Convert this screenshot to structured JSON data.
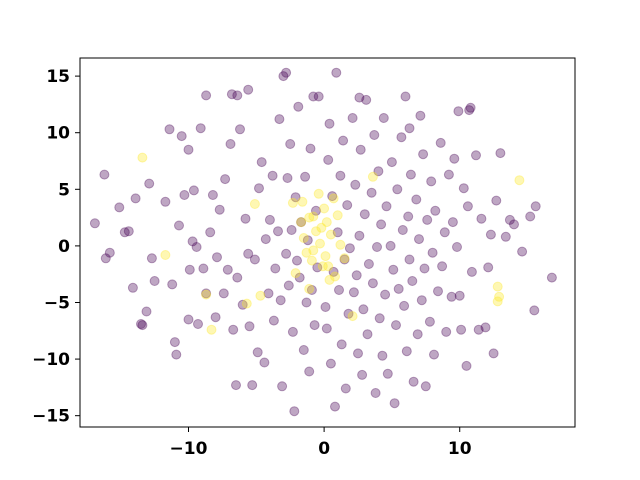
{
  "chart_data": {
    "type": "scatter",
    "title": "",
    "xlabel": "",
    "ylabel": "",
    "xlim": [
      -18,
      18.5
    ],
    "ylim": [
      -16,
      16.6
    ],
    "xticks": [
      -10,
      0,
      10
    ],
    "yticks": [
      -15,
      -10,
      -5,
      0,
      5,
      10,
      15
    ],
    "xtick_labels": [
      "−10",
      "0",
      "10"
    ],
    "ytick_labels": [
      "−15",
      "−10",
      "−5",
      "0",
      "5",
      "10",
      "15"
    ],
    "grid": false,
    "legend": "none",
    "marker_alpha": 0.35,
    "colors": {
      "class_0": "#440154",
      "class_1": "#fde725"
    },
    "series": [
      {
        "class": 0,
        "points": [
          [
            -16.2,
            6.3
          ],
          [
            -16.9,
            2.0
          ],
          [
            -16.1,
            -1.1
          ],
          [
            -15.8,
            -0.6
          ],
          [
            -15.1,
            3.4
          ],
          [
            -14.7,
            1.2
          ],
          [
            -14.4,
            1.3
          ],
          [
            -14.1,
            -3.7
          ],
          [
            -13.9,
            4.2
          ],
          [
            -13.5,
            -6.9
          ],
          [
            -13.4,
            -7.0
          ],
          [
            -13.1,
            -5.8
          ],
          [
            -12.9,
            5.5
          ],
          [
            -12.7,
            -1.1
          ],
          [
            -12.5,
            -3.1
          ],
          [
            -11.7,
            3.9
          ],
          [
            -11.4,
            10.3
          ],
          [
            -11.2,
            -3.4
          ],
          [
            -11.0,
            -8.5
          ],
          [
            -10.9,
            -9.6
          ],
          [
            -10.7,
            1.8
          ],
          [
            -10.5,
            9.7
          ],
          [
            -10.3,
            4.5
          ],
          [
            -10.0,
            8.5
          ],
          [
            -10.0,
            -6.5
          ],
          [
            -9.9,
            -2.1
          ],
          [
            -9.7,
            0.4
          ],
          [
            -9.6,
            4.9
          ],
          [
            -9.4,
            -0.1
          ],
          [
            -9.3,
            -6.9
          ],
          [
            -9.1,
            10.4
          ],
          [
            -8.9,
            -2.0
          ],
          [
            -8.7,
            -4.2
          ],
          [
            -8.4,
            1.2
          ],
          [
            -8.2,
            4.5
          ],
          [
            -8.0,
            -6.3
          ],
          [
            -7.9,
            -1.0
          ],
          [
            -7.7,
            3.2
          ],
          [
            -7.4,
            -4.2
          ],
          [
            -7.3,
            5.9
          ],
          [
            -7.1,
            -2.1
          ],
          [
            -6.9,
            9.0
          ],
          [
            -6.7,
            -7.4
          ],
          [
            -6.5,
            -12.3
          ],
          [
            -6.4,
            -2.8
          ],
          [
            -6.2,
            10.3
          ],
          [
            -6.0,
            -5.2
          ],
          [
            -5.8,
            2.4
          ],
          [
            -5.6,
            -0.7
          ],
          [
            -5.5,
            -7.1
          ],
          [
            -5.3,
            -12.3
          ],
          [
            -5.1,
            -1.2
          ],
          [
            -4.9,
            -9.4
          ],
          [
            -4.8,
            5.1
          ],
          [
            -4.6,
            7.4
          ],
          [
            -4.4,
            -10.3
          ],
          [
            -4.3,
            0.6
          ],
          [
            -4.1,
            -4.2
          ],
          [
            -4.0,
            2.3
          ],
          [
            -3.8,
            6.2
          ],
          [
            -3.7,
            -6.6
          ],
          [
            -3.6,
            -2.0
          ],
          [
            -3.4,
            1.3
          ],
          [
            -3.3,
            11.2
          ],
          [
            -3.2,
            -4.8
          ],
          [
            -3.1,
            -12.4
          ],
          [
            -3.0,
            15.0
          ],
          [
            -2.8,
            -0.7
          ],
          [
            -2.7,
            6.0
          ],
          [
            -2.6,
            -3.5
          ],
          [
            -2.5,
            9.0
          ],
          [
            -2.4,
            1.4
          ],
          [
            -2.3,
            -7.6
          ],
          [
            -2.2,
            -14.6
          ],
          [
            -2.1,
            4.3
          ],
          [
            -2.0,
            -1.3
          ],
          [
            -1.9,
            12.3
          ],
          [
            -1.8,
            -2.8
          ],
          [
            -1.7,
            2.1
          ],
          [
            -1.5,
            -9.2
          ],
          [
            -1.4,
            6.1
          ],
          [
            -1.3,
            -5.0
          ],
          [
            -1.2,
            0.5
          ],
          [
            -1.1,
            -11.1
          ],
          [
            -1.0,
            8.6
          ],
          [
            -0.9,
            -3.9
          ],
          [
            -0.8,
            13.2
          ],
          [
            -0.7,
            -7.0
          ],
          [
            -0.6,
            3.1
          ],
          [
            -0.5,
            -1.9
          ],
          [
            0.1,
            -5.4
          ],
          [
            0.2,
            -7.3
          ],
          [
            0.3,
            7.6
          ],
          [
            0.4,
            10.8
          ],
          [
            0.5,
            -10.4
          ],
          [
            0.6,
            4.4
          ],
          [
            0.7,
            -2.3
          ],
          [
            0.8,
            -14.2
          ],
          [
            0.9,
            15.3
          ],
          [
            1.0,
            1.2
          ],
          [
            1.1,
            -3.9
          ],
          [
            1.2,
            6.2
          ],
          [
            1.3,
            -8.7
          ],
          [
            1.4,
            9.3
          ],
          [
            1.5,
            -1.2
          ],
          [
            1.6,
            -12.6
          ],
          [
            1.7,
            3.6
          ],
          [
            1.8,
            -6.0
          ],
          [
            1.9,
            -0.2
          ],
          [
            2.1,
            11.3
          ],
          [
            2.2,
            -4.1
          ],
          [
            2.3,
            5.4
          ],
          [
            2.4,
            -2.6
          ],
          [
            2.5,
            -9.5
          ],
          [
            2.6,
            0.9
          ],
          [
            2.7,
            8.5
          ],
          [
            2.8,
            -11.4
          ],
          [
            2.9,
            -5.6
          ],
          [
            3.0,
            2.8
          ],
          [
            3.1,
            12.9
          ],
          [
            3.2,
            -7.8
          ],
          [
            3.3,
            -1.6
          ],
          [
            3.5,
            4.7
          ],
          [
            3.6,
            -3.3
          ],
          [
            3.7,
            9.8
          ],
          [
            3.8,
            -13.0
          ],
          [
            3.9,
            -0.1
          ],
          [
            4.0,
            6.6
          ],
          [
            4.1,
            -6.4
          ],
          [
            4.2,
            1.9
          ],
          [
            4.3,
            -9.7
          ],
          [
            4.4,
            11.3
          ],
          [
            4.5,
            -4.3
          ],
          [
            4.6,
            3.5
          ],
          [
            4.7,
            -11.3
          ],
          [
            4.9,
            0.0
          ],
          [
            5.0,
            7.4
          ],
          [
            5.1,
            -2.1
          ],
          [
            5.2,
            -13.9
          ],
          [
            5.3,
            -7.0
          ],
          [
            5.4,
            5.0
          ],
          [
            5.5,
            -3.8
          ],
          [
            5.7,
            9.6
          ],
          [
            5.8,
            1.4
          ],
          [
            5.9,
            -5.3
          ],
          [
            6.0,
            13.2
          ],
          [
            6.1,
            -9.3
          ],
          [
            6.2,
            2.6
          ],
          [
            6.3,
            -1.2
          ],
          [
            6.4,
            6.3
          ],
          [
            6.5,
            -3.1
          ],
          [
            6.6,
            -12.0
          ],
          [
            6.8,
            4.1
          ],
          [
            6.9,
            -7.8
          ],
          [
            7.0,
            0.6
          ],
          [
            7.1,
            11.5
          ],
          [
            7.2,
            -4.8
          ],
          [
            7.3,
            8.1
          ],
          [
            7.4,
            -2.0
          ],
          [
            7.5,
            -12.4
          ],
          [
            7.6,
            2.3
          ],
          [
            7.8,
            -6.7
          ],
          [
            7.9,
            5.7
          ],
          [
            8.0,
            -0.6
          ],
          [
            8.1,
            -9.6
          ],
          [
            8.2,
            3.1
          ],
          [
            8.4,
            -4.0
          ],
          [
            8.6,
            9.1
          ],
          [
            8.7,
            -1.8
          ],
          [
            8.9,
            1.2
          ],
          [
            9.0,
            -7.6
          ],
          [
            9.2,
            6.3
          ],
          [
            9.4,
            -4.5
          ],
          [
            9.5,
            2.1
          ],
          [
            9.6,
            7.7
          ],
          [
            9.8,
            -0.1
          ],
          [
            9.9,
            11.9
          ],
          [
            10.0,
            -4.4
          ],
          [
            10.1,
            -7.4
          ],
          [
            10.3,
            5.1
          ],
          [
            10.5,
            -10.6
          ],
          [
            10.6,
            3.5
          ],
          [
            10.7,
            12.0
          ],
          [
            10.8,
            12.2
          ],
          [
            10.9,
            -2.3
          ],
          [
            11.2,
            8.0
          ],
          [
            11.4,
            -7.4
          ],
          [
            11.6,
            2.4
          ],
          [
            11.9,
            -7.2
          ],
          [
            12.1,
            -1.9
          ],
          [
            12.3,
            1.0
          ],
          [
            12.5,
            -9.5
          ],
          [
            12.7,
            4.0
          ],
          [
            13.0,
            8.2
          ],
          [
            13.4,
            0.8
          ],
          [
            13.7,
            2.3
          ],
          [
            14.0,
            1.9
          ],
          [
            14.6,
            -0.5
          ],
          [
            15.2,
            2.6
          ],
          [
            15.5,
            -5.7
          ],
          [
            15.6,
            3.5
          ],
          [
            16.8,
            -2.8
          ],
          [
            -8.7,
            13.3
          ],
          [
            -6.8,
            13.4
          ],
          [
            -6.4,
            13.3
          ],
          [
            -5.6,
            13.8
          ],
          [
            -2.8,
            15.3
          ],
          [
            -0.4,
            13.2
          ],
          [
            2.6,
            13.1
          ],
          [
            6.3,
            10.4
          ]
        ]
      },
      {
        "class": 1,
        "points": [
          [
            -13.4,
            7.8
          ],
          [
            -11.7,
            -0.8
          ],
          [
            -8.7,
            -4.3
          ],
          [
            -8.3,
            -7.4
          ],
          [
            -5.7,
            -5.1
          ],
          [
            -5.1,
            3.7
          ],
          [
            -4.7,
            -4.4
          ],
          [
            -2.1,
            -2.4
          ],
          [
            -1.7,
            2.1
          ],
          [
            -1.6,
            3.9
          ],
          [
            -1.5,
            0.7
          ],
          [
            -1.3,
            -0.6
          ],
          [
            -1.1,
            2.5
          ],
          [
            -0.9,
            -1.3
          ],
          [
            -0.8,
            2.6
          ],
          [
            -0.6,
            1.3
          ],
          [
            -0.4,
            4.6
          ],
          [
            -0.3,
            0.2
          ],
          [
            -0.2,
            1.6
          ],
          [
            -0.1,
            -1.8
          ],
          [
            0.0,
            3.3
          ],
          [
            0.1,
            -0.9
          ],
          [
            0.2,
            2.1
          ],
          [
            0.4,
            -3.0
          ],
          [
            0.5,
            1.0
          ],
          [
            0.7,
            4.2
          ],
          [
            0.8,
            -2.7
          ],
          [
            1.0,
            2.7
          ],
          [
            1.2,
            0.1
          ],
          [
            2.1,
            -6.2
          ],
          [
            3.6,
            6.1
          ],
          [
            -1.1,
            -3.8
          ],
          [
            -2.3,
            3.8
          ],
          [
            12.8,
            -3.6
          ],
          [
            12.9,
            -4.5
          ],
          [
            12.8,
            -4.9
          ],
          [
            14.4,
            5.8
          ],
          [
            -0.8,
            -0.4
          ],
          [
            1.5,
            -1.1
          ],
          [
            0.3,
            -1.8
          ]
        ]
      }
    ]
  }
}
